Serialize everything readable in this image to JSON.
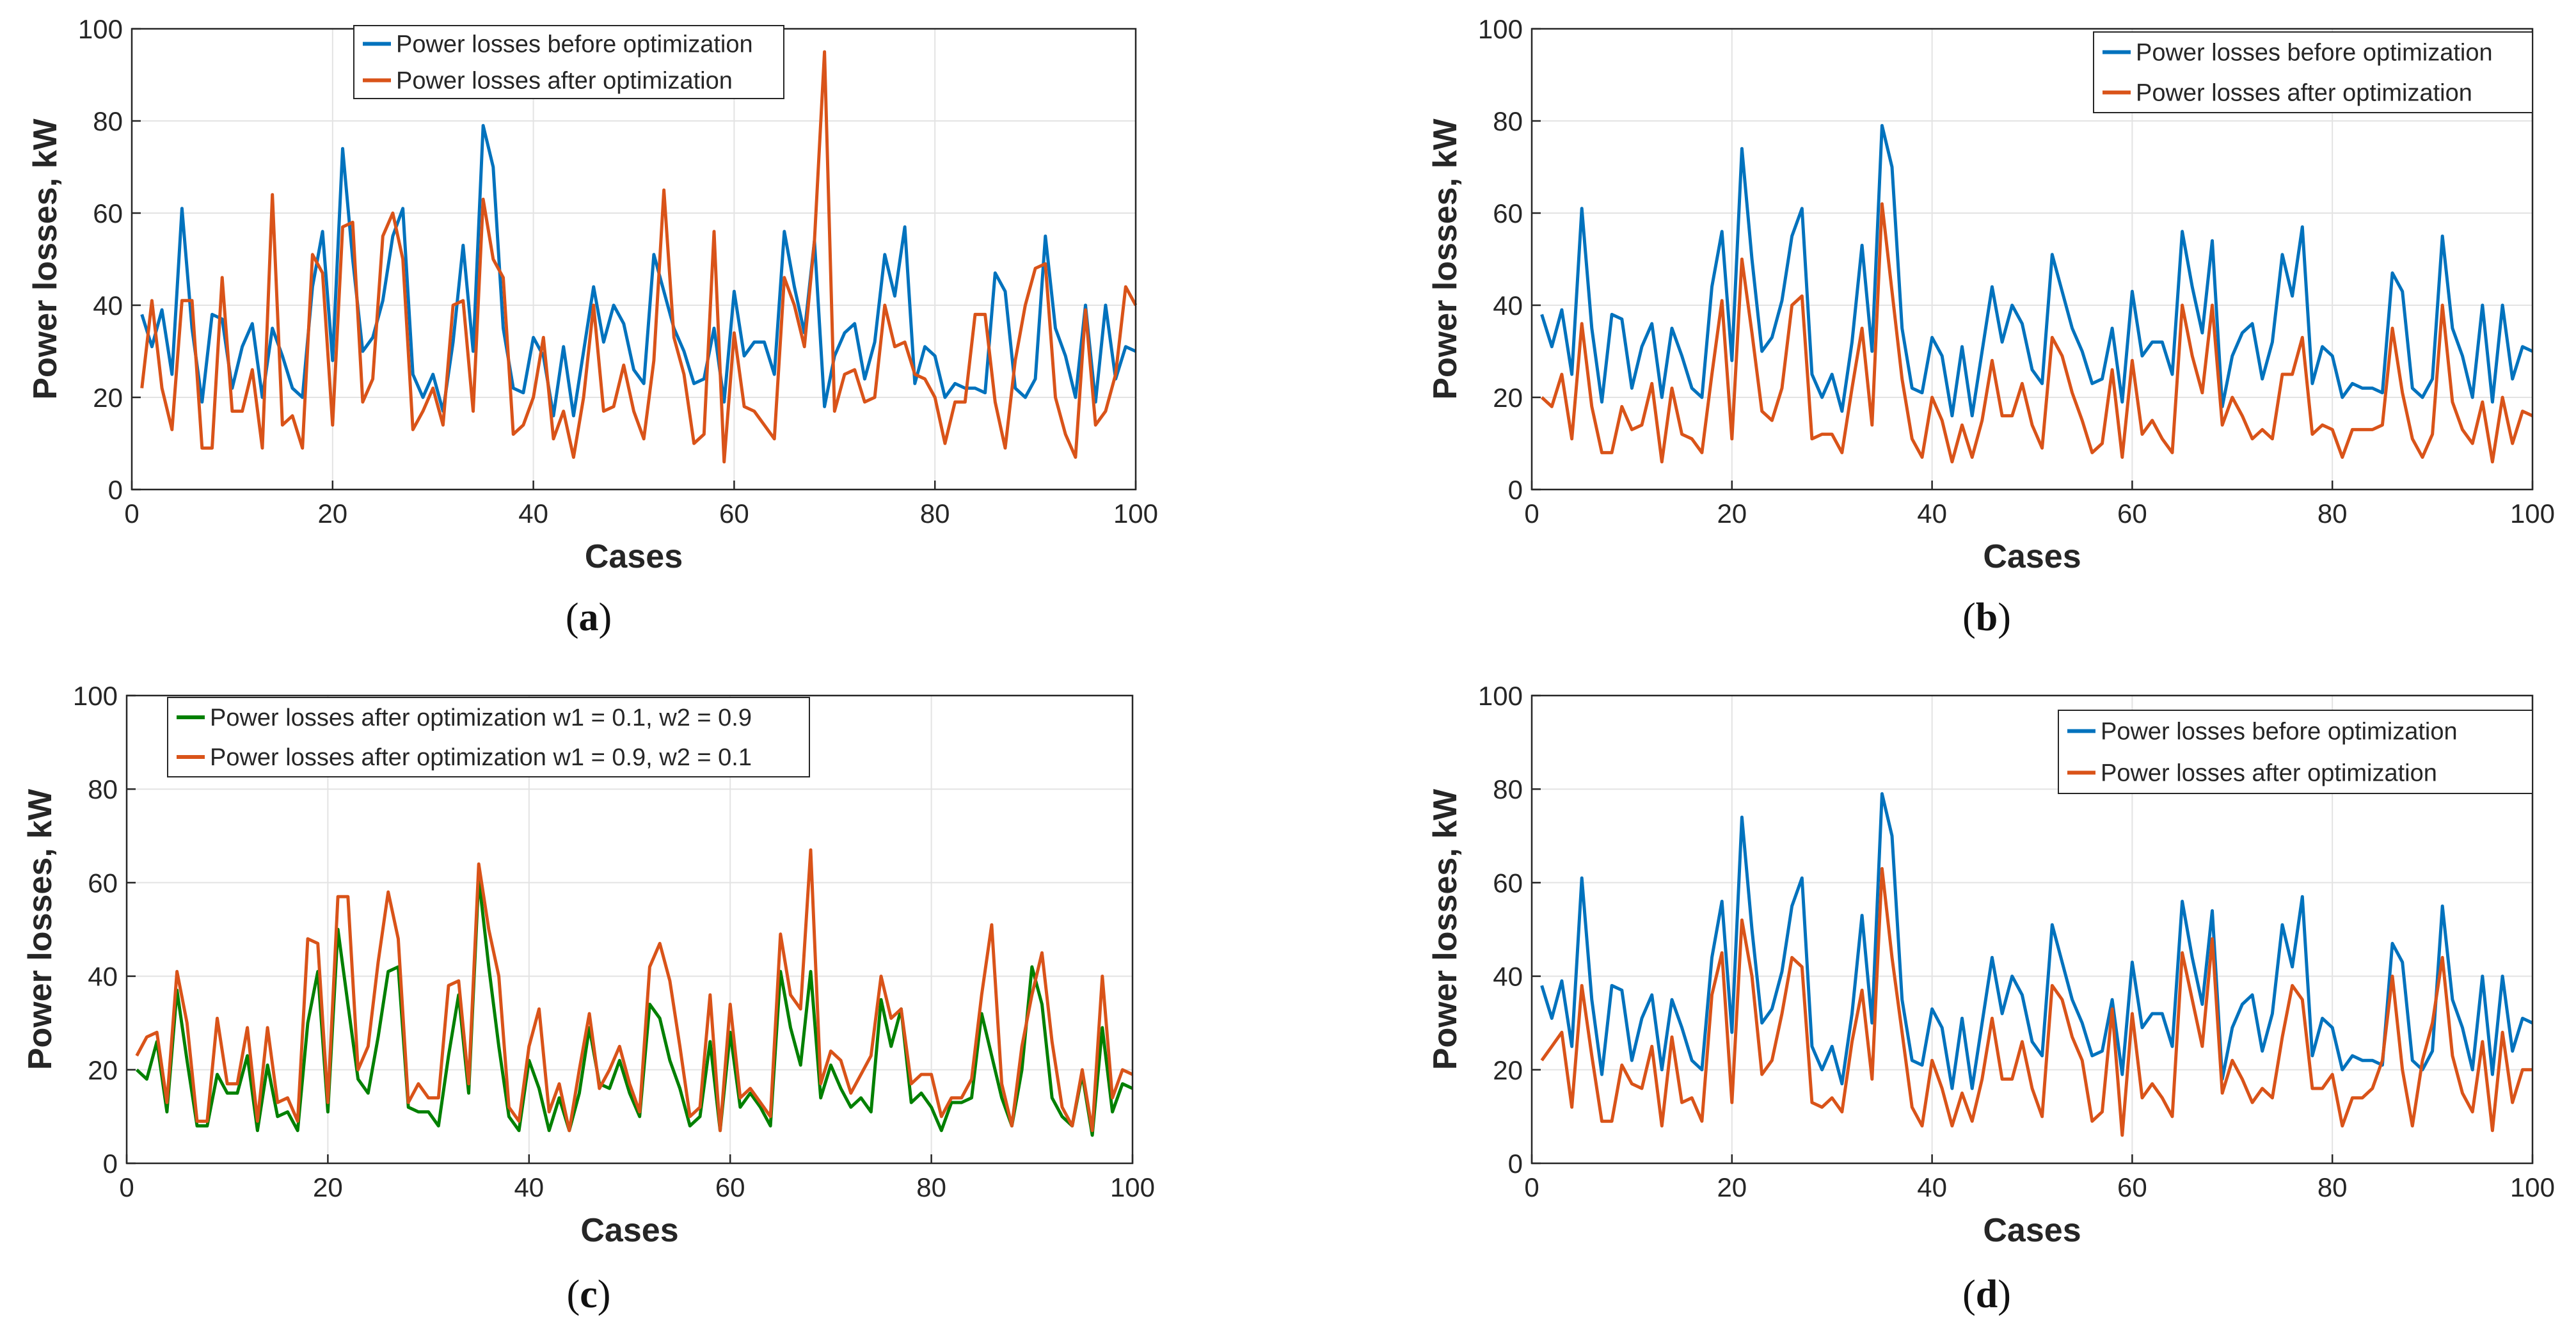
{
  "chart_data": [
    {
      "type": "line",
      "panel": "(a)",
      "caption_letter": "a",
      "xlabel": "Cases",
      "ylabel": "Power losses, kW",
      "xlim": [
        0,
        100
      ],
      "ylim": [
        0,
        100
      ],
      "xticks": [
        0,
        20,
        40,
        60,
        80,
        100
      ],
      "yticks": [
        0,
        20,
        40,
        60,
        80,
        100
      ],
      "grid": true,
      "legend_position": "top-center",
      "x_start": 1,
      "series": [
        {
          "name": "Power losses before optimization",
          "color": "#0072BD",
          "values": [
            38,
            31,
            39,
            25,
            61,
            35,
            19,
            38,
            37,
            22,
            31,
            36,
            20,
            35,
            29,
            22,
            20,
            44,
            56,
            28,
            74,
            50,
            30,
            33,
            41,
            55,
            61,
            25,
            20,
            25,
            17,
            32,
            53,
            30,
            79,
            70,
            35,
            22,
            21,
            33,
            29,
            16,
            31,
            16,
            30,
            44,
            32,
            40,
            36,
            26,
            23,
            51,
            43,
            35,
            30,
            23,
            24,
            35,
            19,
            43,
            29,
            32,
            32,
            25,
            56,
            44,
            34,
            54,
            18,
            29,
            34,
            36,
            24,
            32,
            51,
            42,
            57,
            23,
            31,
            29,
            20,
            23,
            22,
            22,
            21,
            47,
            43,
            22,
            20,
            24,
            55,
            35,
            29,
            20,
            40,
            19,
            40,
            24,
            31,
            30
          ]
        },
        {
          "name": "Power losses after optimization",
          "color": "#D95319",
          "values": [
            22,
            41,
            22,
            13,
            41,
            41,
            9,
            9,
            46,
            17,
            17,
            26,
            9,
            64,
            14,
            16,
            9,
            51,
            47,
            14,
            57,
            58,
            19,
            24,
            55,
            60,
            50,
            13,
            17,
            22,
            14,
            40,
            41,
            17,
            63,
            50,
            46,
            12,
            14,
            20,
            33,
            11,
            17,
            7,
            20,
            40,
            17,
            18,
            27,
            17,
            11,
            28,
            65,
            33,
            25,
            10,
            12,
            56,
            6,
            34,
            18,
            17,
            14,
            11,
            46,
            40,
            31,
            54,
            95,
            17,
            25,
            26,
            19,
            20,
            40,
            31,
            32,
            25,
            24,
            20,
            10,
            19,
            19,
            38,
            38,
            19,
            9,
            28,
            40,
            48,
            49,
            20,
            12,
            7,
            39,
            14,
            17,
            25,
            44,
            40
          ]
        }
      ]
    },
    {
      "type": "line",
      "panel": "(b)",
      "caption_letter": "b",
      "xlabel": "Cases",
      "ylabel": "Power losses, kW",
      "xlim": [
        0,
        100
      ],
      "ylim": [
        0,
        100
      ],
      "xticks": [
        0,
        20,
        40,
        60,
        80,
        100
      ],
      "yticks": [
        0,
        20,
        40,
        60,
        80,
        100
      ],
      "grid": true,
      "legend_position": "top-right",
      "x_start": 1,
      "series": [
        {
          "name": "Power losses before optimization",
          "color": "#0072BD",
          "values": [
            38,
            31,
            39,
            25,
            61,
            35,
            19,
            38,
            37,
            22,
            31,
            36,
            20,
            35,
            29,
            22,
            20,
            44,
            56,
            28,
            74,
            50,
            30,
            33,
            41,
            55,
            61,
            25,
            20,
            25,
            17,
            32,
            53,
            30,
            79,
            70,
            35,
            22,
            21,
            33,
            29,
            16,
            31,
            16,
            30,
            44,
            32,
            40,
            36,
            26,
            23,
            51,
            43,
            35,
            30,
            23,
            24,
            35,
            19,
            43,
            29,
            32,
            32,
            25,
            56,
            44,
            34,
            54,
            18,
            29,
            34,
            36,
            24,
            32,
            51,
            42,
            57,
            23,
            31,
            29,
            20,
            23,
            22,
            22,
            21,
            47,
            43,
            22,
            20,
            24,
            55,
            35,
            29,
            20,
            40,
            19,
            40,
            24,
            31,
            30
          ]
        },
        {
          "name": "Power losses after optimization",
          "color": "#D95319",
          "values": [
            20,
            18,
            25,
            11,
            36,
            18,
            8,
            8,
            18,
            13,
            14,
            23,
            6,
            22,
            12,
            11,
            8,
            25,
            41,
            11,
            50,
            34,
            17,
            15,
            22,
            40,
            42,
            11,
            12,
            12,
            8,
            22,
            35,
            14,
            62,
            43,
            24,
            11,
            7,
            20,
            15,
            6,
            14,
            7,
            15,
            28,
            16,
            16,
            23,
            14,
            9,
            33,
            29,
            21,
            15,
            8,
            10,
            26,
            7,
            28,
            12,
            15,
            11,
            8,
            40,
            29,
            21,
            40,
            14,
            20,
            16,
            11,
            13,
            11,
            25,
            25,
            33,
            12,
            14,
            13,
            7,
            13,
            13,
            13,
            14,
            35,
            21,
            11,
            7,
            12,
            40,
            19,
            13,
            10,
            19,
            6,
            20,
            10,
            17,
            16
          ]
        }
      ]
    },
    {
      "type": "line",
      "panel": "(c)",
      "caption_letter": "c",
      "xlabel": "Cases",
      "ylabel": "Power losses, kW",
      "xlim": [
        0,
        100
      ],
      "ylim": [
        0,
        100
      ],
      "xticks": [
        0,
        20,
        40,
        60,
        80,
        100
      ],
      "yticks": [
        0,
        20,
        40,
        60,
        80,
        100
      ],
      "grid": true,
      "legend_position": "top-left",
      "x_start": 1,
      "series": [
        {
          "name": "Power losses after optimization w1 = 0.1, w2 = 0.9",
          "color": "#008000",
          "values": [
            20,
            18,
            26,
            11,
            37,
            22,
            8,
            8,
            19,
            15,
            15,
            23,
            7,
            21,
            10,
            11,
            7,
            30,
            41,
            11,
            50,
            34,
            18,
            15,
            27,
            41,
            42,
            12,
            11,
            11,
            8,
            23,
            36,
            15,
            61,
            42,
            25,
            10,
            7,
            22,
            16,
            7,
            14,
            7,
            15,
            29,
            17,
            16,
            22,
            15,
            10,
            34,
            31,
            22,
            16,
            8,
            10,
            26,
            7,
            28,
            12,
            15,
            12,
            8,
            41,
            29,
            21,
            41,
            14,
            21,
            16,
            12,
            14,
            11,
            35,
            25,
            33,
            13,
            15,
            12,
            7,
            13,
            13,
            14,
            32,
            23,
            14,
            8,
            20,
            42,
            34,
            14,
            10,
            8,
            19,
            6,
            29,
            11,
            17,
            16
          ]
        },
        {
          "name": "Power losses after optimization w1 = 0.9, w2 = 0.1",
          "color": "#D95319",
          "values": [
            23,
            27,
            28,
            13,
            41,
            30,
            9,
            9,
            31,
            17,
            17,
            29,
            9,
            29,
            13,
            14,
            9,
            48,
            47,
            13,
            57,
            57,
            20,
            25,
            43,
            58,
            48,
            13,
            17,
            14,
            14,
            38,
            39,
            17,
            64,
            50,
            40,
            12,
            9,
            25,
            33,
            11,
            17,
            7,
            20,
            32,
            16,
            20,
            25,
            17,
            11,
            42,
            47,
            39,
            25,
            10,
            12,
            36,
            7,
            34,
            14,
            16,
            13,
            10,
            49,
            36,
            33,
            67,
            17,
            24,
            22,
            15,
            19,
            23,
            40,
            31,
            33,
            17,
            19,
            19,
            10,
            14,
            14,
            18,
            36,
            51,
            17,
            8,
            25,
            36,
            45,
            26,
            12,
            8,
            20,
            7,
            40,
            14,
            20,
            19
          ]
        }
      ]
    },
    {
      "type": "line",
      "panel": "(d)",
      "caption_letter": "d",
      "xlabel": "Cases",
      "ylabel": "Power losses, kW",
      "xlim": [
        0,
        100
      ],
      "ylim": [
        0,
        100
      ],
      "xticks": [
        0,
        20,
        40,
        60,
        80,
        100
      ],
      "yticks": [
        0,
        20,
        40,
        60,
        80,
        100
      ],
      "grid": true,
      "legend_position": "top-right",
      "x_start": 1,
      "series": [
        {
          "name": "Power losses before optimization",
          "color": "#0072BD",
          "values": [
            38,
            31,
            39,
            25,
            61,
            35,
            19,
            38,
            37,
            22,
            31,
            36,
            20,
            35,
            29,
            22,
            20,
            44,
            56,
            28,
            74,
            50,
            30,
            33,
            41,
            55,
            61,
            25,
            20,
            25,
            17,
            32,
            53,
            30,
            79,
            70,
            35,
            22,
            21,
            33,
            29,
            16,
            31,
            16,
            30,
            44,
            32,
            40,
            36,
            26,
            23,
            51,
            43,
            35,
            30,
            23,
            24,
            35,
            19,
            43,
            29,
            32,
            32,
            25,
            56,
            44,
            34,
            54,
            18,
            29,
            34,
            36,
            24,
            32,
            51,
            42,
            57,
            23,
            31,
            29,
            20,
            23,
            22,
            22,
            21,
            47,
            43,
            22,
            20,
            24,
            55,
            35,
            29,
            20,
            40,
            19,
            40,
            24,
            31,
            30
          ]
        },
        {
          "name": "Power losses after optimization",
          "color": "#D95319",
          "values": [
            22,
            25,
            28,
            12,
            38,
            23,
            9,
            9,
            21,
            17,
            16,
            25,
            8,
            27,
            13,
            14,
            9,
            36,
            45,
            13,
            52,
            40,
            19,
            22,
            32,
            44,
            42,
            13,
            12,
            14,
            11,
            26,
            37,
            18,
            63,
            44,
            28,
            12,
            8,
            22,
            16,
            8,
            15,
            9,
            18,
            31,
            18,
            18,
            26,
            16,
            10,
            38,
            35,
            27,
            22,
            9,
            11,
            33,
            6,
            32,
            14,
            17,
            14,
            10,
            45,
            35,
            25,
            48,
            15,
            22,
            18,
            13,
            16,
            14,
            27,
            38,
            35,
            16,
            16,
            19,
            8,
            14,
            14,
            16,
            22,
            40,
            20,
            8,
            22,
            30,
            44,
            23,
            15,
            11,
            26,
            7,
            28,
            13,
            20,
            20
          ]
        }
      ]
    }
  ]
}
